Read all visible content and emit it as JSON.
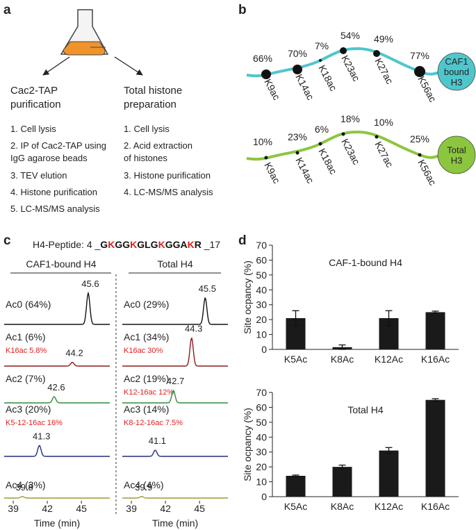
{
  "panel_a": {
    "label": "a",
    "left": {
      "title": [
        "Cac2-TAP",
        "purification"
      ],
      "steps": [
        [
          "1. Cell lysis"
        ],
        [
          "2. IP of  Cac2-TAP using",
          "IgG agarose beads"
        ],
        [
          "3. TEV elution"
        ],
        [
          "4. Histone purification"
        ],
        [
          "5. LC-MS/MS analysis"
        ]
      ]
    },
    "right": {
      "title": [
        "Total histone",
        "preparation"
      ],
      "steps": [
        [
          "1. Cell lysis"
        ],
        [
          "2. Acid extraction",
          "of histones"
        ],
        [
          "3. Histone purification"
        ],
        [
          "4. LC-MS/MS analysis"
        ]
      ]
    }
  },
  "panel_b": {
    "label": "b",
    "tracks": [
      {
        "end_label": [
          "CAF1",
          "bound",
          "H3"
        ],
        "color": "#4fc6cc",
        "sites": [
          {
            "name": "K9ac",
            "occupancy": "66%"
          },
          {
            "name": "K14ac",
            "occupancy": "70%"
          },
          {
            "name": "K18ac",
            "occupancy": "7%"
          },
          {
            "name": "K23ac",
            "occupancy": "54%"
          },
          {
            "name": "K27ac",
            "occupancy": "49%"
          },
          {
            "name": "K56ac",
            "occupancy": "77%"
          }
        ]
      },
      {
        "end_label": [
          "Total",
          "H3"
        ],
        "color": "#8cc63f",
        "sites": [
          {
            "name": "K9ac",
            "occupancy": "10%"
          },
          {
            "name": "K14ac",
            "occupancy": "23%"
          },
          {
            "name": "K18ac",
            "occupancy": "6%"
          },
          {
            "name": "K23ac",
            "occupancy": "18%"
          },
          {
            "name": "K27ac",
            "occupancy": "10%"
          },
          {
            "name": "K56ac",
            "occupancy": "25%"
          }
        ]
      }
    ]
  },
  "panel_c": {
    "label": "c",
    "peptide": {
      "prefix": "H4-Peptide:  4 _",
      "suffix": " _17",
      "residues": [
        {
          "text": "G",
          "color": "#111"
        },
        {
          "text": "K",
          "color": "#e02020"
        },
        {
          "text": "G",
          "color": "#111"
        },
        {
          "text": "G",
          "color": "#111"
        },
        {
          "text": "K",
          "color": "#e02020"
        },
        {
          "text": "G",
          "color": "#111"
        },
        {
          "text": "L",
          "color": "#111"
        },
        {
          "text": "G",
          "color": "#111"
        },
        {
          "text": "K",
          "color": "#e02020"
        },
        {
          "text": "G",
          "color": "#111"
        },
        {
          "text": "G",
          "color": "#111"
        },
        {
          "text": "A",
          "color": "#111"
        },
        {
          "text": "K",
          "color": "#e02020"
        },
        {
          "text": "R",
          "color": "#111"
        }
      ]
    },
    "xlabel": "Time (min)",
    "xlim": [
      38.2,
      47.5
    ],
    "xticks": [
      39,
      42,
      45
    ],
    "panes": [
      {
        "title": "CAF1-bound H4",
        "traces": [
          {
            "name": "Ac0 (64%)",
            "color": "#111111",
            "peak": 45.6,
            "intensity": 1.0
          },
          {
            "name": "Ac1 (6%)",
            "note": "K16ac 5.8%",
            "color": "#8b1a1a",
            "peak": 44.2,
            "intensity": 0.12
          },
          {
            "name": "Ac2 (7%)",
            "color": "#2e8b3e",
            "peak": 42.6,
            "intensity": 0.2
          },
          {
            "name": "Ac3 (20%)",
            "note": "K5-12-16ac 16%",
            "color": "#1f2f7a",
            "peak": 41.3,
            "intensity": 0.35
          },
          {
            "name": "Ac4 (3%)",
            "color": "#9a9a30",
            "peak": 39.8,
            "intensity": 0.05
          }
        ]
      },
      {
        "title": "Total H4",
        "traces": [
          {
            "name": "Ac0 (29%)",
            "color": "#111111",
            "peak": 45.5,
            "intensity": 0.85
          },
          {
            "name": "Ac1 (34%)",
            "note": "K16ac 30%",
            "color": "#8b1a1a",
            "peak": 44.3,
            "intensity": 0.9
          },
          {
            "name": "Ac2 (19%)",
            "note": "K12-16ac 12%",
            "color": "#2e8b3e",
            "peak": 42.7,
            "intensity": 0.4
          },
          {
            "name": "Ac3 (14%)",
            "note": "K8-12-16ac 7.5%",
            "color": "#1f2f7a",
            "peak": 41.1,
            "intensity": 0.2
          },
          {
            "name": "Ac4 (4%)",
            "color": "#9a9a30",
            "peak": 39.9,
            "intensity": 0.05
          }
        ]
      }
    ]
  },
  "panel_d": {
    "label": "d"
  },
  "chart_data": [
    {
      "type": "bar",
      "title": "CAF-1-bound H4",
      "ylabel": "Site ocpancy (%)",
      "categories": [
        "K5Ac",
        "K8Ac",
        "K12Ac",
        "K16Ac"
      ],
      "values": [
        21,
        1.5,
        21,
        25
      ],
      "errors": [
        5,
        1.5,
        5,
        0.7
      ],
      "color": "#1a1a1a",
      "ylim": [
        0,
        70
      ],
      "yticks": [
        0,
        10,
        20,
        30,
        40,
        50,
        60,
        70
      ]
    },
    {
      "type": "bar",
      "title": "Total H4",
      "ylabel": "Site ocpancy (%)",
      "categories": [
        "K5Ac",
        "K8Ac",
        "K12Ac",
        "K16Ac"
      ],
      "values": [
        14,
        20,
        31,
        65
      ],
      "errors": [
        0.5,
        1.2,
        2,
        0.8
      ],
      "color": "#1a1a1a",
      "ylim": [
        0,
        70
      ],
      "yticks": [
        0,
        10,
        20,
        30,
        40,
        50,
        60,
        70
      ]
    }
  ]
}
